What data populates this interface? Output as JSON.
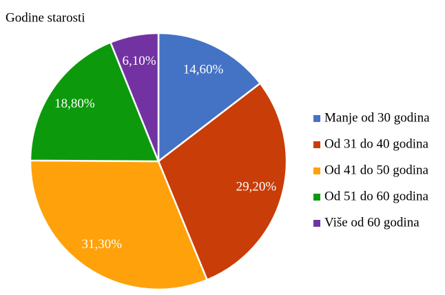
{
  "chart_data": {
    "type": "pie",
    "title": "Godine starosti",
    "categories": [
      "Manje od 30 godina",
      "Od 31 do 40 godina",
      "Od 41 do 50 godina",
      "Od 51 do 60 godina",
      "Više od 60 godina"
    ],
    "values": [
      14.6,
      29.2,
      31.3,
      18.8,
      6.1
    ],
    "value_labels": [
      "14,60%",
      "29,20%",
      "31,30%",
      "18,80%",
      "6,10%"
    ],
    "colors": [
      "#4472c4",
      "#c93d08",
      "#ffa10a",
      "#0c9a0c",
      "#7232a2"
    ],
    "legend": "right"
  }
}
